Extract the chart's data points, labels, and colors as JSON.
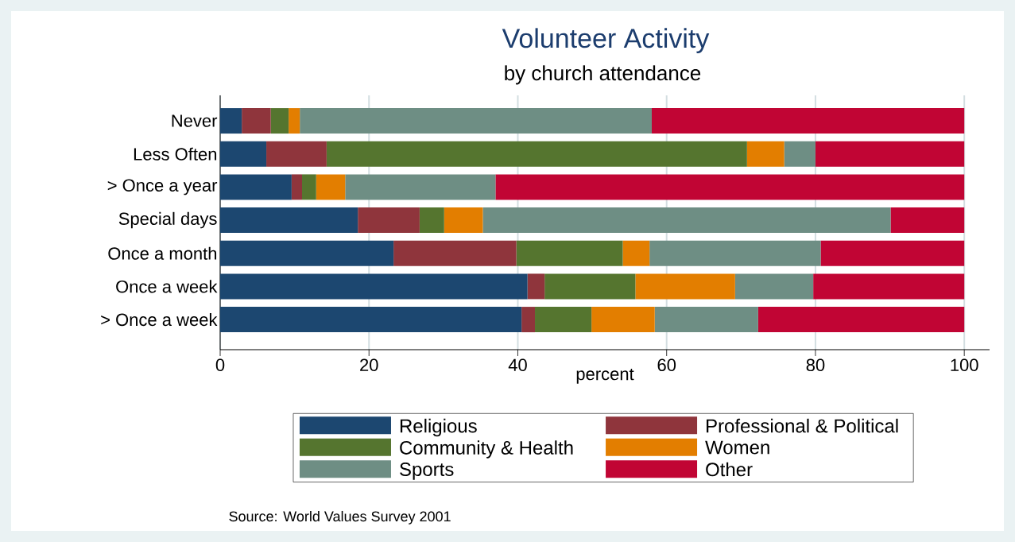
{
  "chart_data": {
    "type": "bar",
    "orientation": "horizontal",
    "stacked": true,
    "title": "Volunteer Activity",
    "subtitle": "by church attendance",
    "xlabel": "percent",
    "categories": [
      "Never",
      "Less Often",
      "> Once a year",
      "Special days",
      "Once a month",
      "Once a week",
      "> Once a week"
    ],
    "series": [
      {
        "name": "Religious",
        "color": "#1c4770",
        "values": [
          2.9,
          6.2,
          9.6,
          18.5,
          23.3,
          41.3,
          40.5
        ]
      },
      {
        "name": "Professional & Political",
        "color": "#8f353c",
        "values": [
          3.9,
          8.1,
          1.4,
          8.3,
          16.5,
          2.3,
          1.8
        ]
      },
      {
        "name": "Community & Health",
        "color": "#55752f",
        "values": [
          2.4,
          56.5,
          1.9,
          3.3,
          14.3,
          12.2,
          7.6
        ]
      },
      {
        "name": "Women",
        "color": "#e37e00",
        "values": [
          1.5,
          5.0,
          3.9,
          5.2,
          3.6,
          13.4,
          8.5
        ]
      },
      {
        "name": "Sports",
        "color": "#6e8e84",
        "values": [
          47.3,
          4.2,
          20.2,
          54.8,
          23.0,
          10.5,
          13.9
        ]
      },
      {
        "name": "Other",
        "color": "#c10534",
        "values": [
          42.0,
          20.0,
          63.0,
          9.9,
          19.3,
          20.3,
          27.7
        ]
      }
    ],
    "xlim": [
      0,
      103.4
    ],
    "xticks": [
      0,
      20,
      40,
      60,
      80,
      100
    ],
    "grid": "x",
    "legend": "bottom",
    "annotations": [
      "Source: World Values Survey 2001"
    ]
  }
}
